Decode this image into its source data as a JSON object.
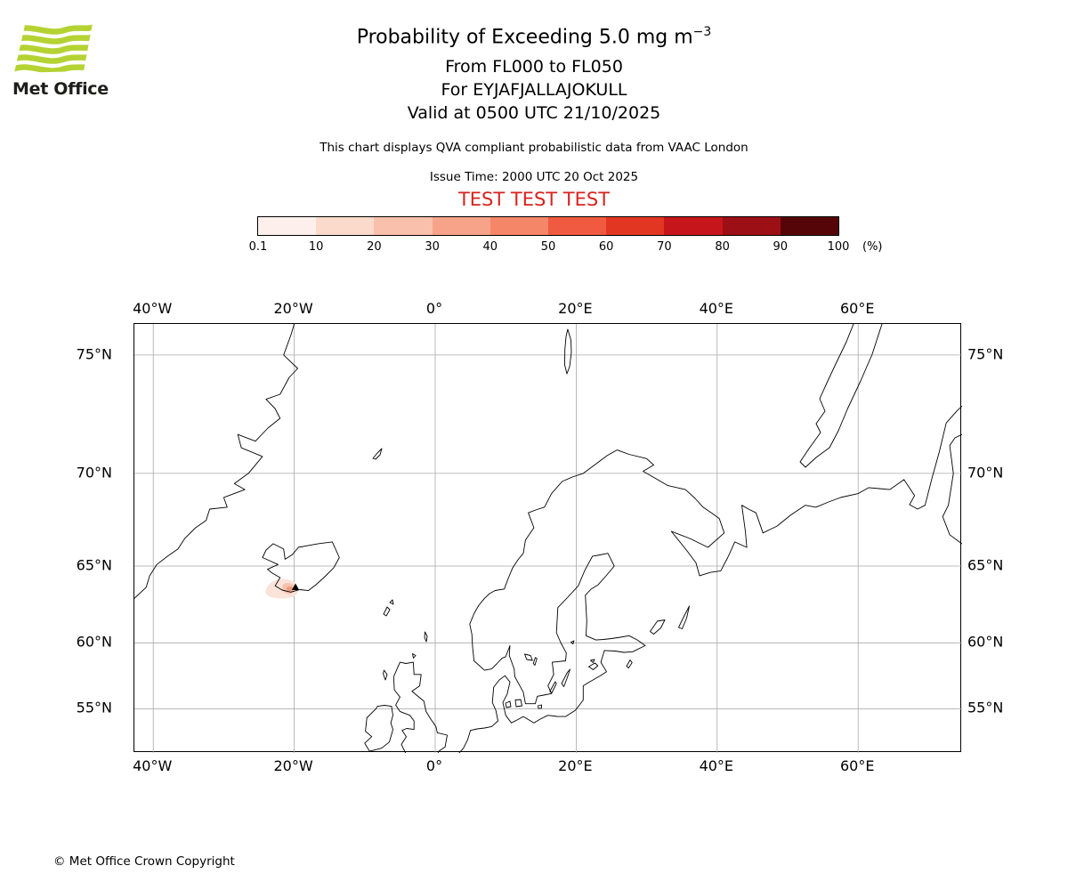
{
  "header": {
    "logo_text": "Met Office",
    "title": "Probability of Exceeding 5.0 mg m",
    "title_superscript": "−3",
    "flight_levels": "From FL000 to FL050",
    "volcano": "For EYJAFJALLAJOKULL",
    "valid_time": "Valid at 0500 UTC 21/10/2025",
    "description": "This chart displays QVA compliant probabilistic data from VAAC London",
    "issue_time": "Issue Time: 2000 UTC 20 Oct 2025",
    "test_banner": "TEST TEST TEST",
    "test_banner_color": "#d8231f"
  },
  "legend": {
    "unit": "(%)",
    "tick_labels": [
      "0.1",
      "10",
      "20",
      "30",
      "40",
      "50",
      "60",
      "70",
      "80",
      "90",
      "100"
    ],
    "colors": [
      "#fdf0ec",
      "#fbd9cb",
      "#f9c0ab",
      "#f7a38a",
      "#f58667",
      "#ef5a40",
      "#e23623",
      "#c6161c",
      "#9c0f15",
      "#550408"
    ]
  },
  "map": {
    "x_tick_labels": [
      "40°W",
      "20°W",
      "0°",
      "20°E",
      "40°E",
      "60°E"
    ],
    "y_tick_labels": [
      "75°N",
      "70°N",
      "65°N",
      "60°N",
      "55°N"
    ],
    "ash_colors": {
      "low": "#fbe3da",
      "mid": "#f6c2ae",
      "high": "#ef987a"
    }
  },
  "footer": {
    "copyright": "© Met Office Crown Copyright"
  }
}
